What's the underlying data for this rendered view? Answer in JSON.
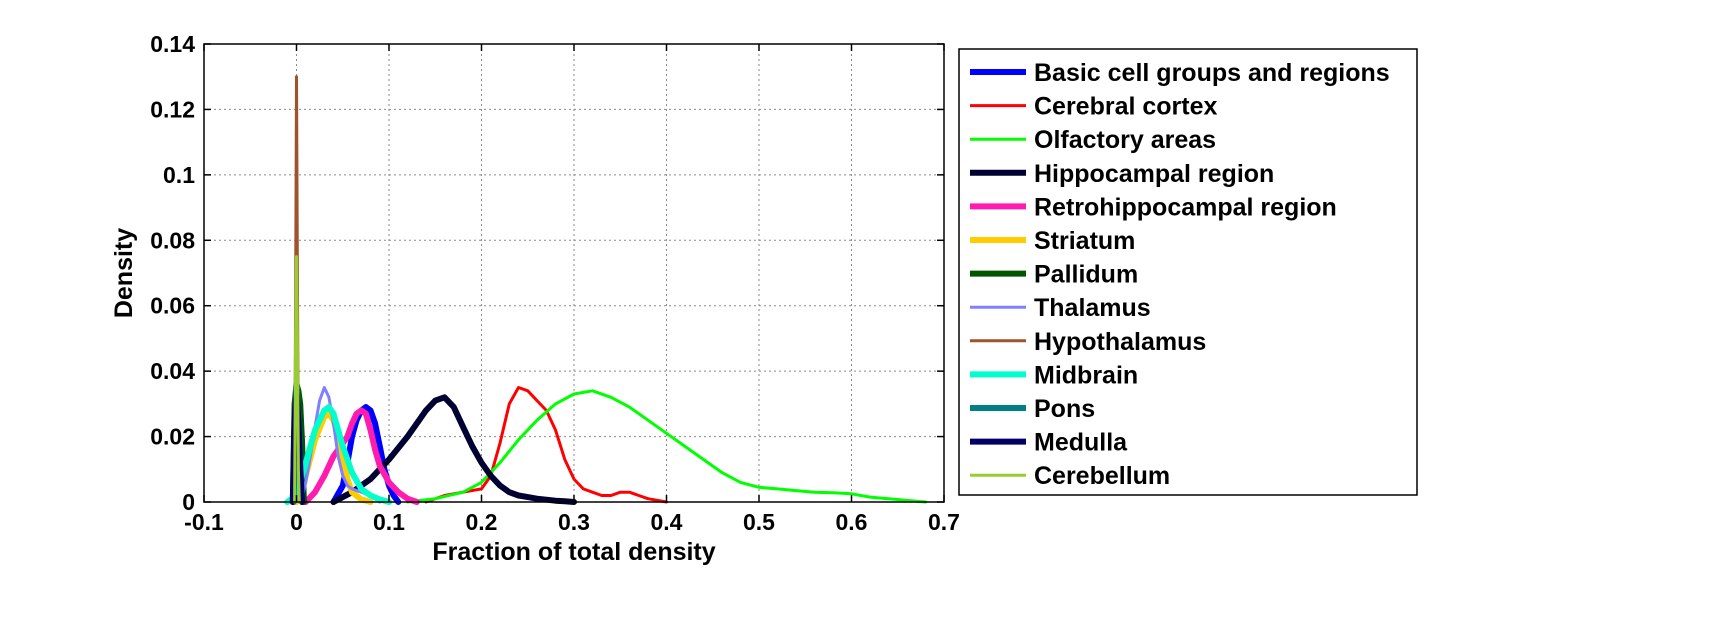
{
  "chart_data": {
    "type": "line",
    "title": "",
    "xlabel": "Fraction of total density",
    "ylabel": "Density",
    "xlim": [
      -0.1,
      0.7
    ],
    "ylim": [
      0,
      0.14
    ],
    "xticks": [
      -0.1,
      0,
      0.1,
      0.2,
      0.3,
      0.4,
      0.5,
      0.6,
      0.7
    ],
    "yticks": [
      0,
      0.02,
      0.04,
      0.06,
      0.08,
      0.1,
      0.12,
      0.14
    ],
    "xtick_labels": [
      "-0.1",
      "0",
      "0.1",
      "0.2",
      "0.3",
      "0.4",
      "0.5",
      "0.6",
      "0.7"
    ],
    "ytick_labels": [
      "0",
      "0.02",
      "0.04",
      "0.06",
      "0.08",
      "0.1",
      "0.12",
      "0.14"
    ],
    "grid": true,
    "legend_position": "outside-right",
    "series": [
      {
        "name": "Basic cell groups and regions",
        "color": "#0000ff",
        "width": 6,
        "x": [
          0.04,
          0.05,
          0.055,
          0.06,
          0.065,
          0.07,
          0.075,
          0.08,
          0.085,
          0.09,
          0.095,
          0.1,
          0.105,
          0.11
        ],
        "y": [
          0,
          0.005,
          0.012,
          0.02,
          0.025,
          0.028,
          0.029,
          0.028,
          0.024,
          0.017,
          0.01,
          0.005,
          0.002,
          0
        ]
      },
      {
        "name": "Cerebral cortex",
        "color": "#ff0000",
        "width": 3,
        "x": [
          0.14,
          0.16,
          0.18,
          0.2,
          0.21,
          0.22,
          0.23,
          0.24,
          0.25,
          0.26,
          0.27,
          0.28,
          0.29,
          0.3,
          0.31,
          0.32,
          0.33,
          0.34,
          0.35,
          0.36,
          0.37,
          0.38,
          0.39,
          0.4
        ],
        "y": [
          0,
          0.002,
          0.003,
          0.004,
          0.008,
          0.018,
          0.03,
          0.035,
          0.034,
          0.031,
          0.028,
          0.022,
          0.013,
          0.007,
          0.004,
          0.003,
          0.002,
          0.002,
          0.003,
          0.003,
          0.002,
          0.001,
          0.0005,
          0
        ]
      },
      {
        "name": "Olfactory areas",
        "color": "#00ff00",
        "width": 3,
        "x": [
          0.12,
          0.15,
          0.18,
          0.2,
          0.22,
          0.24,
          0.26,
          0.28,
          0.3,
          0.32,
          0.34,
          0.36,
          0.38,
          0.4,
          0.42,
          0.44,
          0.46,
          0.48,
          0.5,
          0.52,
          0.54,
          0.56,
          0.58,
          0.6,
          0.62,
          0.64,
          0.66,
          0.68
        ],
        "y": [
          0,
          0.001,
          0.003,
          0.006,
          0.012,
          0.019,
          0.025,
          0.03,
          0.033,
          0.034,
          0.032,
          0.029,
          0.025,
          0.021,
          0.017,
          0.013,
          0.009,
          0.006,
          0.0045,
          0.004,
          0.0035,
          0.003,
          0.0028,
          0.0025,
          0.0015,
          0.001,
          0.0005,
          0
        ]
      },
      {
        "name": "Hippocampal region",
        "color": "#000033",
        "width": 6,
        "x": [
          0.04,
          0.06,
          0.08,
          0.1,
          0.12,
          0.13,
          0.14,
          0.15,
          0.16,
          0.17,
          0.18,
          0.19,
          0.2,
          0.21,
          0.22,
          0.23,
          0.24,
          0.25,
          0.26,
          0.27,
          0.28,
          0.29,
          0.3
        ],
        "y": [
          0,
          0.003,
          0.007,
          0.013,
          0.02,
          0.024,
          0.028,
          0.031,
          0.032,
          0.029,
          0.023,
          0.017,
          0.012,
          0.008,
          0.005,
          0.003,
          0.002,
          0.0015,
          0.001,
          0.0007,
          0.0004,
          0.0002,
          0
        ]
      },
      {
        "name": "Retrohippocampal region",
        "color": "#ff1cae",
        "width": 6,
        "x": [
          0.01,
          0.02,
          0.03,
          0.04,
          0.05,
          0.055,
          0.06,
          0.065,
          0.07,
          0.075,
          0.08,
          0.085,
          0.09,
          0.1,
          0.11,
          0.12,
          0.13
        ],
        "y": [
          0,
          0.003,
          0.008,
          0.014,
          0.018,
          0.02,
          0.024,
          0.027,
          0.028,
          0.027,
          0.022,
          0.016,
          0.011,
          0.006,
          0.003,
          0.001,
          0
        ]
      },
      {
        "name": "Striatum",
        "color": "#ffcc00",
        "width": 6,
        "x": [
          0.0,
          0.01,
          0.02,
          0.03,
          0.035,
          0.04,
          0.045,
          0.05,
          0.055,
          0.06,
          0.07,
          0.08
        ],
        "y": [
          0,
          0.008,
          0.019,
          0.026,
          0.027,
          0.025,
          0.02,
          0.013,
          0.007,
          0.003,
          0.0008,
          0
        ]
      },
      {
        "name": "Pallidum",
        "color": "#005500",
        "width": 6,
        "x": [
          -0.004,
          -0.002,
          0.0,
          0.002,
          0.004,
          0.006,
          0.008
        ],
        "y": [
          0,
          0.03,
          0.036,
          0.034,
          0.03,
          0.018,
          0
        ]
      },
      {
        "name": "Thalamus",
        "color": "#8080ff",
        "width": 3,
        "x": [
          0.005,
          0.01,
          0.015,
          0.02,
          0.025,
          0.03,
          0.035,
          0.04,
          0.045,
          0.05,
          0.055,
          0.06,
          0.07,
          0.08,
          0.09
        ],
        "y": [
          0,
          0.006,
          0.014,
          0.023,
          0.031,
          0.035,
          0.032,
          0.024,
          0.014,
          0.008,
          0.005,
          0.004,
          0.003,
          0.002,
          0
        ]
      },
      {
        "name": "Hypothalamus",
        "color": "#a0522d",
        "width": 3,
        "x": [
          -0.002,
          -0.001,
          0.0,
          0.001,
          0.002,
          0.003
        ],
        "y": [
          0,
          0.06,
          0.13,
          0.07,
          0.01,
          0
        ]
      },
      {
        "name": "Midbrain",
        "color": "#00ffcc",
        "width": 6,
        "x": [
          -0.01,
          0.0,
          0.01,
          0.02,
          0.03,
          0.035,
          0.04,
          0.05,
          0.06,
          0.07,
          0.08,
          0.09,
          0.1
        ],
        "y": [
          0,
          0.002,
          0.012,
          0.022,
          0.028,
          0.029,
          0.027,
          0.017,
          0.009,
          0.004,
          0.002,
          0.0008,
          0
        ]
      },
      {
        "name": "Pons",
        "color": "#008080",
        "width": 6,
        "x": [
          -0.003,
          -0.001,
          0.0,
          0.002,
          0.004,
          0.006
        ],
        "y": [
          0,
          0.03,
          0.036,
          0.026,
          0.012,
          0
        ]
      },
      {
        "name": "Medulla",
        "color": "#000066",
        "width": 6,
        "x": [
          -0.004,
          -0.002,
          0.0,
          0.002,
          0.004,
          0.006
        ],
        "y": [
          0,
          0.025,
          0.034,
          0.025,
          0.01,
          0
        ]
      },
      {
        "name": "Cerebellum",
        "color": "#99cc33",
        "width": 3,
        "x": [
          -0.002,
          -0.001,
          0.0,
          0.001,
          0.002,
          0.003
        ],
        "y": [
          0,
          0.05,
          0.075,
          0.05,
          0.01,
          0
        ]
      }
    ]
  }
}
